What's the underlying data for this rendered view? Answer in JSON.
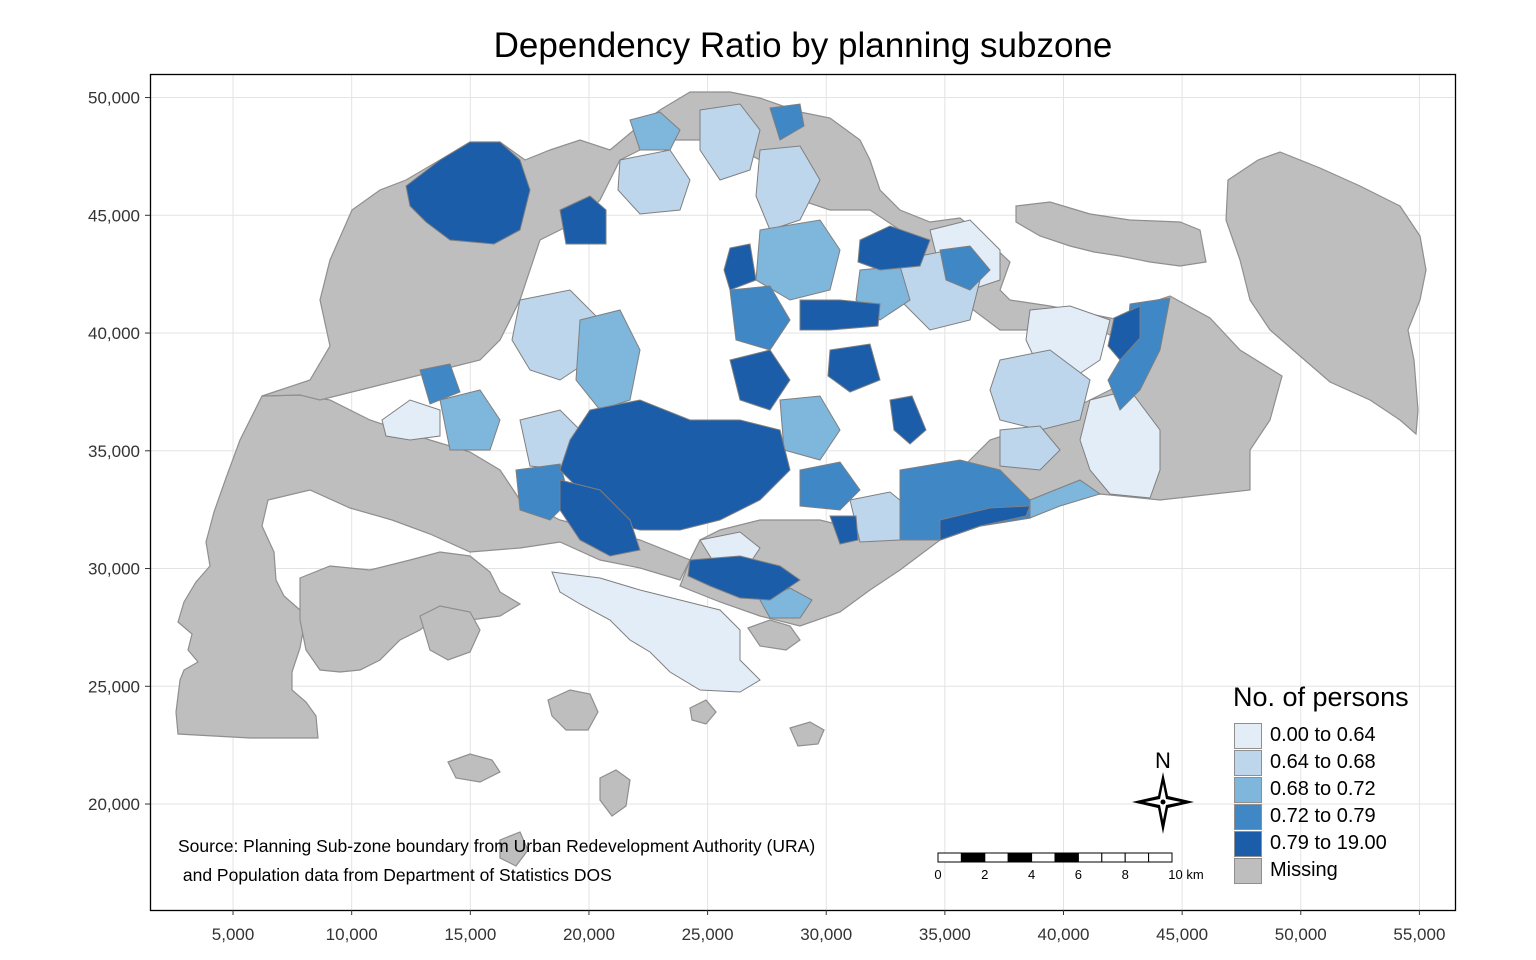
{
  "title": "Dependency Ratio by planning subzone",
  "axes": {
    "x_ticks": [
      "5,000",
      "10,000",
      "15,000",
      "20,000",
      "25,000",
      "30,000",
      "35,000",
      "40,000",
      "45,000",
      "50,000",
      "55,000"
    ],
    "y_ticks": [
      "50,000",
      "45,000",
      "40,000",
      "35,000",
      "30,000",
      "25,000",
      "20,000"
    ],
    "xlim": [
      1500,
      56500
    ],
    "ylim": [
      15500,
      51000
    ],
    "grid": true
  },
  "legend": {
    "title": "No. of persons",
    "position": "bottom-right",
    "items": [
      {
        "label": "0.00 to 0.64",
        "color": "#e3edf8"
      },
      {
        "label": "0.64 to 0.68",
        "color": "#bdd6ec"
      },
      {
        "label": "0.68 to 0.72",
        "color": "#7fb6db"
      },
      {
        "label": "0.72 to 0.79",
        "color": "#3f87c5"
      },
      {
        "label": "0.79 to 19.00",
        "color": "#1b5da8"
      },
      {
        "label": "Missing",
        "color": "#bebebe"
      }
    ]
  },
  "compass": {
    "label": "N"
  },
  "scale_bar": {
    "labels": [
      "0",
      "2",
      "4",
      "6",
      "8",
      "10 km"
    ]
  },
  "source": {
    "line1": "Source: Planning Sub-zone boundary from Urban Redevelopment Authority (URA)",
    "line2": " and Population data from Department of Statistics DOS"
  },
  "colors": {
    "missing": "#bebebe",
    "border": "#8f8f8f",
    "panel_border": "#000000"
  }
}
